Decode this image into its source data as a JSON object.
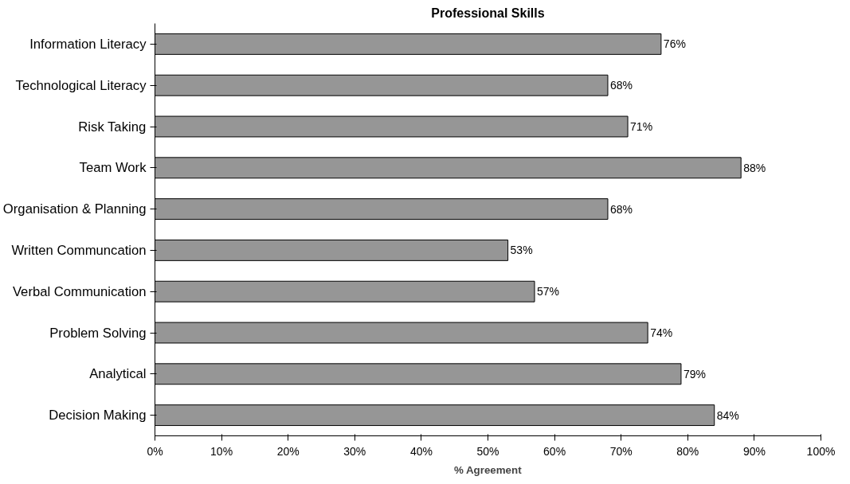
{
  "chart_data": {
    "type": "bar",
    "orientation": "horizontal",
    "title": "Professional Skills",
    "xlabel": "% Agreement",
    "categories": [
      "Information Literacy",
      "Technological Literacy",
      "Risk Taking",
      "Team Work",
      "Organisation & Planning",
      "Written Communcation",
      "Verbal Communication",
      "Problem Solving",
      "Analytical",
      "Decision Making"
    ],
    "values": [
      76,
      68,
      71,
      88,
      68,
      53,
      57,
      74,
      79,
      84
    ],
    "value_labels": [
      "76%",
      "68%",
      "71%",
      "88%",
      "68%",
      "53%",
      "57%",
      "74%",
      "79%",
      "84%"
    ],
    "color": "#969696",
    "xlim": [
      0,
      100
    ],
    "xticks": [
      {
        "value": 0,
        "label": "0%"
      },
      {
        "value": 10,
        "label": "10%"
      },
      {
        "value": 20,
        "label": "20%"
      },
      {
        "value": 30,
        "label": "30%"
      },
      {
        "value": 40,
        "label": "40%"
      },
      {
        "value": 50,
        "label": "50%"
      },
      {
        "value": 60,
        "label": "60%"
      },
      {
        "value": 70,
        "label": "70%"
      },
      {
        "value": 80,
        "label": "80%"
      },
      {
        "value": 90,
        "label": "90%"
      },
      {
        "value": 100,
        "label": "100%"
      }
    ],
    "grid": false
  }
}
